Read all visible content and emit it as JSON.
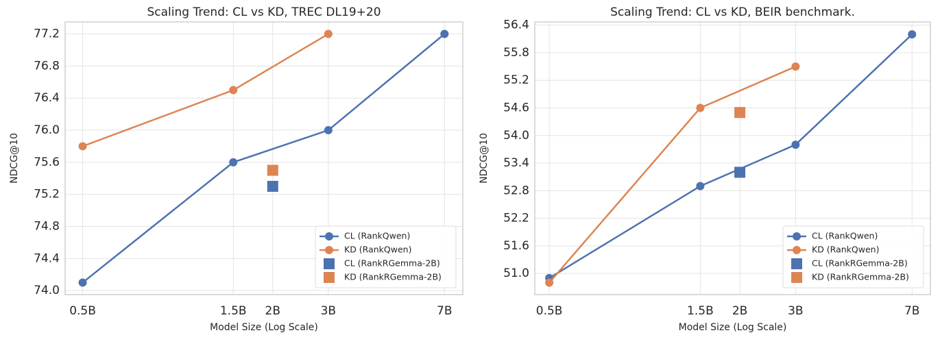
{
  "chart_data": [
    {
      "type": "line",
      "title": "Scaling Trend: CL vs KD, TREC DL19+20",
      "xlabel": "Model Size (Log Scale)",
      "ylabel": "NDCG@10",
      "xscale": "log",
      "grid": true,
      "legend": "lower right",
      "xlim": [
        0.44,
        8.0
      ],
      "ylim": [
        73.95,
        77.35
      ],
      "xticks": [
        {
          "value": 0.5,
          "label": "0.5B"
        },
        {
          "value": 1.5,
          "label": "1.5B"
        },
        {
          "value": 2,
          "label": "2B"
        },
        {
          "value": 3,
          "label": "3B"
        },
        {
          "value": 7,
          "label": "7B"
        }
      ],
      "yticks": [
        {
          "value": 74,
          "label": "74.0"
        },
        74.4,
        74.8,
        75.2,
        75.6,
        {
          "value": 76,
          "label": "76.0"
        },
        76.4,
        76.8,
        77.2
      ],
      "series": [
        {
          "name": "CL (RankQwen)",
          "color": "#4c72b0",
          "marker": "o",
          "line": true,
          "x": [
            0.5,
            1.5,
            3,
            7
          ],
          "values": [
            74.1,
            75.6,
            76.0,
            77.2
          ]
        },
        {
          "name": "KD (RankQwen)",
          "color": "#dd8452",
          "marker": "o",
          "line": true,
          "x": [
            0.5,
            1.5,
            3
          ],
          "values": [
            75.8,
            76.5,
            77.2
          ]
        },
        {
          "name": "CL (RankRGemma-2B)",
          "color": "#4c72b0",
          "marker": "s",
          "line": false,
          "x": [
            2
          ],
          "values": [
            75.3
          ]
        },
        {
          "name": "KD (RankRGemma-2B)",
          "color": "#dd8452",
          "marker": "s",
          "line": false,
          "x": [
            2
          ],
          "values": [
            75.5
          ]
        }
      ]
    },
    {
      "type": "line",
      "title": "Scaling Trend: CL vs KD, BEIR benchmark.",
      "xlabel": "Model Size (Log Scale)",
      "ylabel": "NDCG@10",
      "xscale": "log",
      "grid": true,
      "legend": "lower right",
      "xlim": [
        0.45,
        8.0
      ],
      "ylim": [
        50.54,
        56.47
      ],
      "xticks": [
        {
          "value": 0.5,
          "label": "0.5B"
        },
        {
          "value": 1.5,
          "label": "1.5B"
        },
        {
          "value": 2,
          "label": "2B"
        },
        {
          "value": 3,
          "label": "3B"
        },
        {
          "value": 7,
          "label": "7B"
        }
      ],
      "yticks": [
        {
          "value": 51,
          "label": "51.0"
        },
        51.6,
        52.2,
        52.8,
        53.4,
        {
          "value": 54,
          "label": "54.0"
        },
        54.6,
        55.2,
        55.8,
        56.4
      ],
      "series": [
        {
          "name": "CL (RankQwen)",
          "color": "#4c72b0",
          "marker": "o",
          "line": true,
          "x": [
            0.5,
            1.5,
            3,
            7
          ],
          "values": [
            50.9,
            52.9,
            53.8,
            56.2
          ]
        },
        {
          "name": "KD (RankQwen)",
          "color": "#dd8452",
          "marker": "o",
          "line": true,
          "x": [
            0.5,
            1.5,
            3
          ],
          "values": [
            50.8,
            54.6,
            55.5
          ]
        },
        {
          "name": "CL (RankRGemma-2B)",
          "color": "#4c72b0",
          "marker": "s",
          "line": false,
          "x": [
            2
          ],
          "values": [
            53.2
          ]
        },
        {
          "name": "KD (RankRGemma-2B)",
          "color": "#dd8452",
          "marker": "s",
          "line": false,
          "x": [
            2
          ],
          "values": [
            54.5
          ]
        }
      ]
    }
  ]
}
